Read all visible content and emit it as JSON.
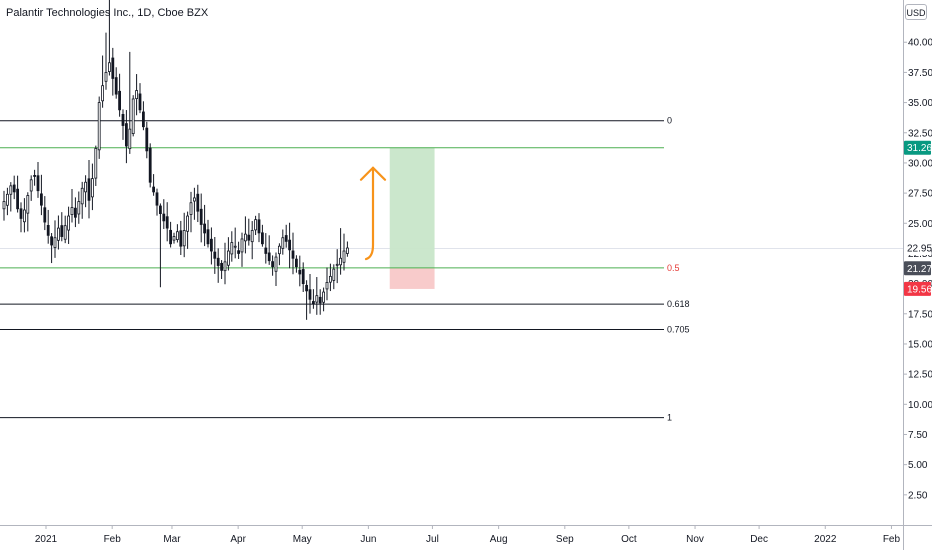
{
  "title": "Palantir Technologies Inc., 1D, Cboe BZX",
  "currency": "USD",
  "colors": {
    "candle": "#131722",
    "target_line": "#4caf50",
    "target_zone": "#c8e6c9",
    "stop_zone": "#f8c8c8",
    "arrow": "#f7931a",
    "badge_green": "#089981",
    "badge_dark": "#4a4e59",
    "badge_red": "#f23645",
    "fib_red": "#e53935"
  },
  "chart_data": {
    "type": "candlestick",
    "ylim": [
      0,
      43.5
    ],
    "y_ticks": [
      2.5,
      5,
      7.5,
      10,
      12.5,
      15,
      17.5,
      20,
      22.5,
      25,
      27.5,
      30,
      32.5,
      35,
      37.5,
      40
    ],
    "y_tick_labels": [
      "2.50",
      "5.00",
      "7.50",
      "10.00",
      "12.50",
      "15.00",
      "17.50",
      "20.00",
      "22.50",
      "25.00",
      "27.50",
      "30.00",
      "32.50",
      "35.00",
      "37.50",
      "40.00"
    ],
    "x_labels": [
      "2021",
      "Feb",
      "Mar",
      "Apr",
      "May",
      "Jun",
      "Jul",
      "Aug",
      "Sep",
      "Oct",
      "Nov",
      "Dec",
      "2022",
      "Feb"
    ],
    "fib_levels": [
      {
        "label": "0",
        "value": 33.5
      },
      {
        "label": "0.5",
        "value": 21.3
      },
      {
        "label": "0.618",
        "value": 18.3
      },
      {
        "label": "0.705",
        "value": 16.2
      },
      {
        "label": "1",
        "value": 8.9
      }
    ],
    "target_level": 31.26,
    "price_badges": [
      {
        "label": "31.26",
        "value": 31.26,
        "style": "green"
      },
      {
        "label": "22.95",
        "value": 22.95,
        "style": "plain"
      },
      {
        "label": "21.27",
        "value": 21.27,
        "style": "dark"
      },
      {
        "label": "19.56",
        "value": 19.56,
        "style": "red"
      }
    ],
    "position": {
      "entry": 21.27,
      "target": 31.26,
      "stop": 19.56,
      "start": "2021-06-11",
      "end": "2021-07-02"
    },
    "closes": [
      26.8,
      27.4,
      28.1,
      27.6,
      26.2,
      25.4,
      26.1,
      27.3,
      28.6,
      28.9,
      27.7,
      26.5,
      25.1,
      24.0,
      23.2,
      23.8,
      24.6,
      23.9,
      24.8,
      25.6,
      26.3,
      25.5,
      26.8,
      27.9,
      28.4,
      26.9,
      28.7,
      31.2,
      35.0,
      36.4,
      37.5,
      38.3,
      37.0,
      35.7,
      34.4,
      33.1,
      31.4,
      32.8,
      35.3,
      36.0,
      34.4,
      33.0,
      31.0,
      28.4,
      27.6,
      26.5,
      25.8,
      25.2,
      24.6,
      23.3,
      23.9,
      24.3,
      23.1,
      24.4,
      25.6,
      26.7,
      27.1,
      26.0,
      24.9,
      24.2,
      23.3,
      22.7,
      22.1,
      21.5,
      21.1,
      21.8,
      22.7,
      23.4,
      23.1,
      22.5,
      23.7,
      24.1,
      23.6,
      24.4,
      25.3,
      24.2,
      23.3,
      22.5,
      21.9,
      21.4,
      22.2,
      23.1,
      23.8,
      23.5,
      22.8,
      22.1,
      21.4,
      20.8,
      20.0,
      19.4,
      18.7,
      18.3,
      19.0,
      18.4,
      19.3,
      20.1,
      20.6,
      21.2,
      21.6,
      22.1,
      22.7,
      22.95
    ]
  }
}
